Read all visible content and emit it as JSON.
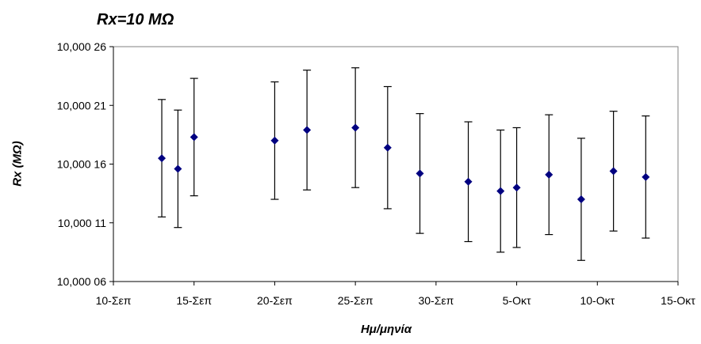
{
  "chart_data": {
    "type": "scatter",
    "title": "Rx=10 MΩ",
    "xlabel": "Ημ/μηνία",
    "ylabel": "Rx (MΩ)",
    "x_ticks": [
      "10-Σεπ",
      "15-Σεπ",
      "20-Σεπ",
      "25-Σεπ",
      "30-Σεπ",
      "5-Οκτ",
      "10-Οκτ",
      "15-Οκτ"
    ],
    "y_ticks": [
      "10,000 06",
      "10,000 11",
      "10,000 16",
      "10,000 21",
      "10,000 26"
    ],
    "xlim_days": [
      0,
      35
    ],
    "ylim": [
      10.00006,
      10.00026
    ],
    "grid": false,
    "marker_color": "#000080",
    "points": [
      {
        "x": "13-Σεπ",
        "y": 10.000165,
        "err": 5e-05
      },
      {
        "x": "14-Σεπ",
        "y": 10.000156,
        "err": 5e-05
      },
      {
        "x": "15-Σεπ",
        "y": 10.000183,
        "err": 5e-05
      },
      {
        "x": "20-Σεπ",
        "y": 10.00018,
        "err": 5e-05
      },
      {
        "x": "22-Σεπ",
        "y": 10.000189,
        "err": 5.1e-05
      },
      {
        "x": "25-Σεπ",
        "y": 10.000191,
        "err": 5.1e-05
      },
      {
        "x": "27-Σεπ",
        "y": 10.000174,
        "err": 5.2e-05
      },
      {
        "x": "29-Σεπ",
        "y": 10.000152,
        "err": 5.1e-05
      },
      {
        "x": "2-Οκτ",
        "y": 10.000145,
        "err": 5.1e-05
      },
      {
        "x": "4-Οκτ",
        "y": 10.000137,
        "err": 5.2e-05
      },
      {
        "x": "5-Οκτ",
        "y": 10.00014,
        "err": 5.1e-05
      },
      {
        "x": "7-Οκτ",
        "y": 10.000151,
        "err": 5.1e-05
      },
      {
        "x": "9-Οκτ",
        "y": 10.00013,
        "err": 5.2e-05
      },
      {
        "x": "11-Οκτ",
        "y": 10.000154,
        "err": 5.1e-05
      },
      {
        "x": "13-Οκτ",
        "y": 10.000149,
        "err": 5.2e-05
      }
    ]
  }
}
